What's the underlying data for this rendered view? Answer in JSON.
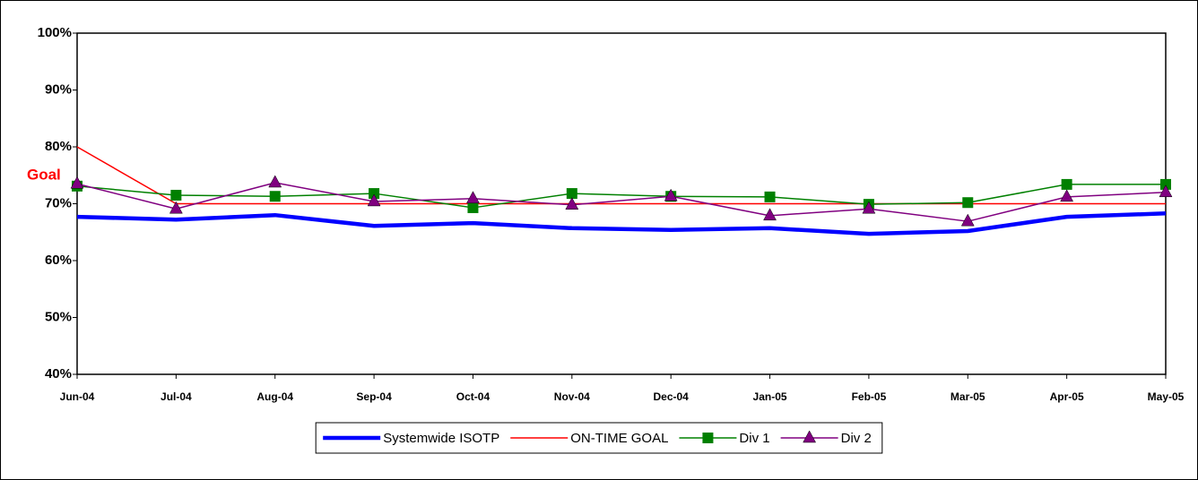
{
  "chart_data": {
    "type": "line",
    "categories": [
      "Jun-04",
      "Jul-04",
      "Aug-04",
      "Sep-04",
      "Oct-04",
      "Nov-04",
      "Dec-04",
      "Jan-05",
      "Feb-05",
      "Mar-05",
      "Apr-05",
      "May-05"
    ],
    "series": [
      {
        "name": "Systemwide ISOTP",
        "color": "#0000ff",
        "line_width": 4.5,
        "marker": "none",
        "values": [
          67.7,
          67.2,
          68.0,
          66.1,
          66.6,
          65.7,
          65.4,
          65.7,
          64.7,
          65.2,
          67.7,
          68.3
        ]
      },
      {
        "name": "ON-TIME GOAL",
        "color": "#ff0000",
        "line_width": 1.5,
        "marker": "none",
        "values": [
          80,
          70,
          70,
          70,
          70,
          70,
          70,
          70,
          70,
          70,
          70,
          70
        ]
      },
      {
        "name": "Div 1",
        "color": "#008000",
        "line_width": 1.5,
        "marker": "square",
        "values": [
          73.1,
          71.5,
          71.3,
          71.8,
          69.3,
          71.8,
          71.3,
          71.2,
          69.9,
          70.2,
          73.4,
          73.4
        ]
      },
      {
        "name": "Div 2",
        "color": "#800080",
        "line_width": 1.5,
        "marker": "triangle",
        "values": [
          73.5,
          69.1,
          73.7,
          70.4,
          70.9,
          69.8,
          71.3,
          67.9,
          69.1,
          66.9,
          71.2,
          72.0
        ]
      }
    ],
    "ylim": [
      40,
      100
    ],
    "yticks": [
      {
        "value": 40,
        "label": "40%"
      },
      {
        "value": 50,
        "label": "50%"
      },
      {
        "value": 60,
        "label": "60%"
      },
      {
        "value": 70,
        "label": "70%"
      },
      {
        "value": 80,
        "label": "80%"
      },
      {
        "value": 90,
        "label": "90%"
      },
      {
        "value": 100,
        "label": "100%"
      }
    ],
    "annotations": [
      {
        "text": "Goal",
        "color": "#ff0000"
      }
    ],
    "grid": false,
    "legend": "bottom"
  }
}
